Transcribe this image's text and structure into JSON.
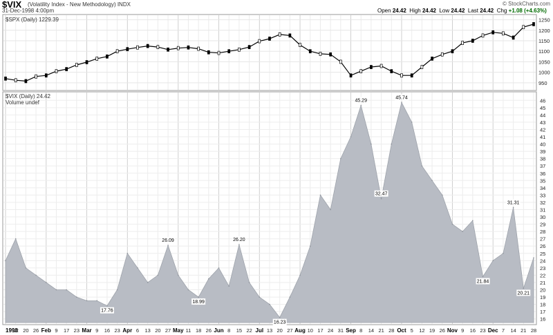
{
  "header": {
    "symbol": "$VIX",
    "description": "(Volatility Index - New Methodology) INDX",
    "date": "31-Dec-1998 4:00pm",
    "watermark": "© StockCharts.com",
    "open_label": "Open",
    "open": "24.42",
    "high_label": "High",
    "high": "24.42",
    "low_label": "Low",
    "low": "24.42",
    "last_label": "Last",
    "last": "24.42",
    "chg_label": "Chg",
    "chg": "+1.08 (+4.63%)",
    "up_color": "#006a00"
  },
  "chart_data": [
    {
      "type": "line",
      "panel": "upper",
      "legend": "$SPX (Daily) 1229.39",
      "ylim": [
        920,
        1265
      ],
      "y_ticks": [
        950,
        1000,
        1050,
        1100,
        1150,
        1200,
        1250
      ],
      "x": [
        "1998",
        "12",
        "20",
        "26",
        "Feb",
        "9",
        "17",
        "23",
        "Mar",
        "9",
        "16",
        "23",
        "Apr",
        "6",
        "13",
        "20",
        "27",
        "May",
        "11",
        "18",
        "26",
        "Jun",
        "8",
        "15",
        "22",
        "Jul",
        "13",
        "20",
        "27",
        "Aug",
        "10",
        "17",
        "24",
        "31",
        "Sep",
        "8",
        "14",
        "21",
        "28",
        "Oct",
        "5",
        "12",
        "19",
        "26",
        "Nov",
        "9",
        "16",
        "23",
        "Dec",
        "7",
        "14",
        "21",
        "28"
      ],
      "values": [
        970,
        962,
        958,
        980,
        985,
        1005,
        1015,
        1035,
        1048,
        1065,
        1075,
        1100,
        1110,
        1118,
        1125,
        1120,
        1108,
        1115,
        1118,
        1112,
        1095,
        1092,
        1100,
        1108,
        1120,
        1148,
        1160,
        1180,
        1175,
        1130,
        1100,
        1088,
        1085,
        1050,
        985,
        1005,
        1025,
        1030,
        1005,
        985,
        985,
        1025,
        1065,
        1085,
        1100,
        1140,
        1150,
        1175,
        1190,
        1185,
        1165,
        1215,
        1229
      ],
      "grid": true
    },
    {
      "type": "area",
      "panel": "lower",
      "legend": "$VIX (Daily) 24.42",
      "legend2": "Volume undef",
      "ylim": [
        15.5,
        46.5
      ],
      "y_ticks": [
        16,
        17,
        18,
        19,
        20,
        21,
        22,
        23,
        24,
        25,
        26,
        27,
        28,
        29,
        30,
        31,
        32,
        33,
        34,
        35,
        36,
        37,
        38,
        39,
        40,
        41,
        42,
        43,
        44,
        45,
        46
      ],
      "x": [
        "1998",
        "12",
        "20",
        "26",
        "Feb",
        "9",
        "17",
        "23",
        "Mar",
        "9",
        "16",
        "23",
        "Apr",
        "6",
        "13",
        "20",
        "27",
        "May",
        "11",
        "18",
        "26",
        "Jun",
        "8",
        "15",
        "22",
        "Jul",
        "13",
        "20",
        "27",
        "Aug",
        "10",
        "17",
        "24",
        "31",
        "Sep",
        "8",
        "14",
        "21",
        "28",
        "Oct",
        "5",
        "12",
        "19",
        "26",
        "Nov",
        "9",
        "16",
        "23",
        "Dec",
        "7",
        "14",
        "21",
        "28"
      ],
      "values": [
        24,
        27,
        23,
        22,
        21,
        20,
        20,
        19,
        18.5,
        18.5,
        17.8,
        20,
        25,
        23,
        21,
        22,
        26.1,
        22,
        20,
        19,
        21.5,
        23,
        20.5,
        26.2,
        21,
        19,
        18,
        16.2,
        19,
        22,
        26,
        33,
        31,
        38,
        41,
        45.3,
        40,
        32.5,
        40,
        45.7,
        43,
        37,
        35,
        33,
        29,
        28,
        29.5,
        21.8,
        24,
        25,
        31.3,
        20.2,
        24.4
      ],
      "data_labels": [
        {
          "index": 10,
          "text": "17.76"
        },
        {
          "index": 16,
          "text": "26.09"
        },
        {
          "index": 19,
          "text": "18.99"
        },
        {
          "index": 23,
          "text": "26.20"
        },
        {
          "index": 27,
          "text": "16.23"
        },
        {
          "index": 35,
          "text": "45.29"
        },
        {
          "index": 37,
          "text": "32.47"
        },
        {
          "index": 39,
          "text": "45.74"
        },
        {
          "index": 47,
          "text": "21.84"
        },
        {
          "index": 50,
          "text": "31.31"
        },
        {
          "index": 51,
          "text": "20.21"
        }
      ],
      "month_labels": [
        "1998",
        "Feb",
        "Mar",
        "Apr",
        "May",
        "Jun",
        "Jul",
        "Aug",
        "Sep",
        "Oct",
        "Nov",
        "Dec"
      ],
      "fill_color": "#b8bcc4",
      "grid": true
    }
  ]
}
